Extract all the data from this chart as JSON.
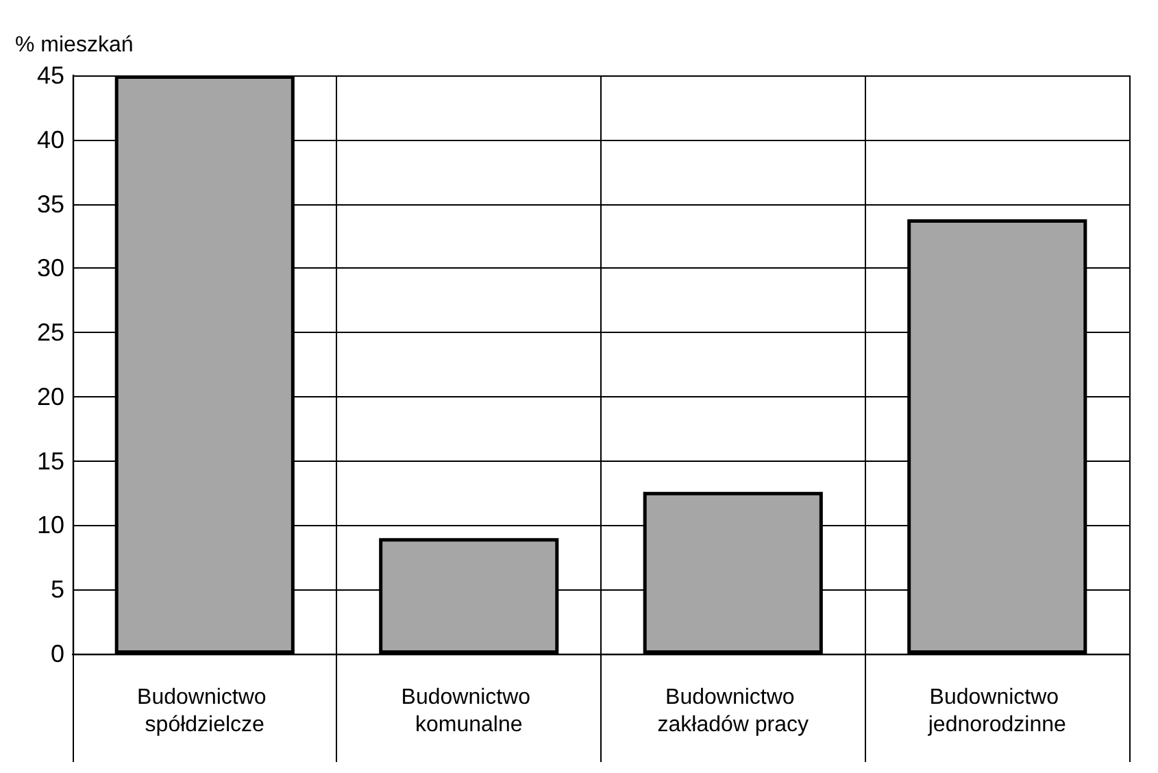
{
  "chart_data": {
    "type": "bar",
    "ylabel": "% mieszkań",
    "categories": [
      "Budownictwo spółdzielcze",
      "Budownictwo komunalne",
      "Budownictwo zakładów pracy",
      "Budownictwo jednorodzinne"
    ],
    "values": [
      45,
      9,
      12.6,
      33.8
    ],
    "color": "#a6a6a6",
    "ylim": [
      0,
      45
    ],
    "yticks": [
      0,
      5,
      10,
      15,
      20,
      25,
      30,
      35,
      40,
      45
    ],
    "grid": true
  }
}
